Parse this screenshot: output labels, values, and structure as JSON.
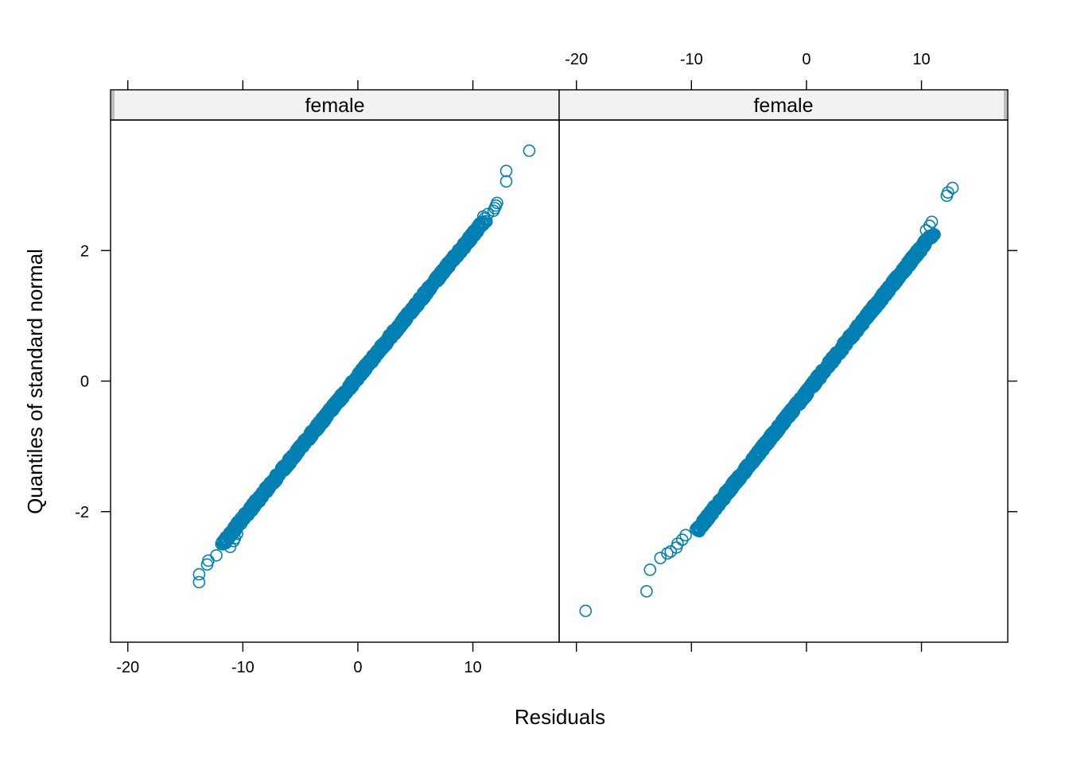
{
  "chart_data": {
    "type": "scatter",
    "xlabel": "Residuals",
    "ylabel": "Quantiles of standard normal",
    "xlim": [
      -21.5,
      17.5
    ],
    "ylim": [
      -4.0,
      4.0
    ],
    "x_ticks": [
      -20,
      -10,
      0,
      10
    ],
    "y_ticks": [
      -2,
      0,
      2
    ],
    "x_tick_labels": [
      "-20",
      "-10",
      "0",
      "10"
    ],
    "y_tick_labels": [
      "-2",
      "0",
      "2"
    ],
    "grid": false,
    "marker": "open-circle",
    "marker_color": "#0080b3",
    "strip_fill": "#f2f2f2",
    "panels": [
      {
        "strip": "female",
        "trend": {
          "x_at_q0": -0.3,
          "x_per_unit_q": 4.6,
          "q_range": [
            -2.5,
            2.45
          ]
        },
        "points": [
          {
            "x": -13.8,
            "q": -3.08
          },
          {
            "x": -13.8,
            "q": -2.96
          },
          {
            "x": -13.1,
            "q": -2.81
          },
          {
            "x": -13.0,
            "q": -2.75
          },
          {
            "x": -12.3,
            "q": -2.67
          },
          {
            "x": -11.1,
            "q": -2.54
          },
          {
            "x": -10.8,
            "q": -2.45
          },
          {
            "x": -10.7,
            "q": -2.41
          },
          {
            "x": -10.5,
            "q": -2.34
          },
          {
            "x": 9.9,
            "q": 2.26
          },
          {
            "x": 10.2,
            "q": 2.31
          },
          {
            "x": 10.6,
            "q": 2.38
          },
          {
            "x": 10.8,
            "q": 2.44
          },
          {
            "x": 11.0,
            "q": 2.49
          },
          {
            "x": 10.9,
            "q": 2.52
          },
          {
            "x": 11.3,
            "q": 2.56
          },
          {
            "x": 11.8,
            "q": 2.61
          },
          {
            "x": 11.9,
            "q": 2.65
          },
          {
            "x": 12.0,
            "q": 2.69
          },
          {
            "x": 12.1,
            "q": 2.73
          },
          {
            "x": 12.9,
            "q": 3.06
          },
          {
            "x": 12.9,
            "q": 3.22
          },
          {
            "x": 14.9,
            "q": 3.53
          }
        ]
      },
      {
        "strip": "female",
        "trend": {
          "x_at_q0": 0.8,
          "x_per_unit_q": 4.5,
          "q_range": [
            -2.3,
            2.25
          ]
        },
        "points": [
          {
            "x": -19.2,
            "q": -3.52
          },
          {
            "x": -13.9,
            "q": -3.22
          },
          {
            "x": -13.6,
            "q": -2.89
          },
          {
            "x": -12.7,
            "q": -2.71
          },
          {
            "x": -12.1,
            "q": -2.64
          },
          {
            "x": -11.8,
            "q": -2.61
          },
          {
            "x": -11.3,
            "q": -2.55
          },
          {
            "x": -11.2,
            "q": -2.49
          },
          {
            "x": -10.8,
            "q": -2.43
          },
          {
            "x": -10.5,
            "q": -2.36
          },
          {
            "x": 10.4,
            "q": 2.31
          },
          {
            "x": 10.7,
            "q": 2.38
          },
          {
            "x": 10.9,
            "q": 2.44
          },
          {
            "x": 12.2,
            "q": 2.84
          },
          {
            "x": 12.3,
            "q": 2.89
          },
          {
            "x": 12.7,
            "q": 2.96
          }
        ]
      }
    ]
  }
}
